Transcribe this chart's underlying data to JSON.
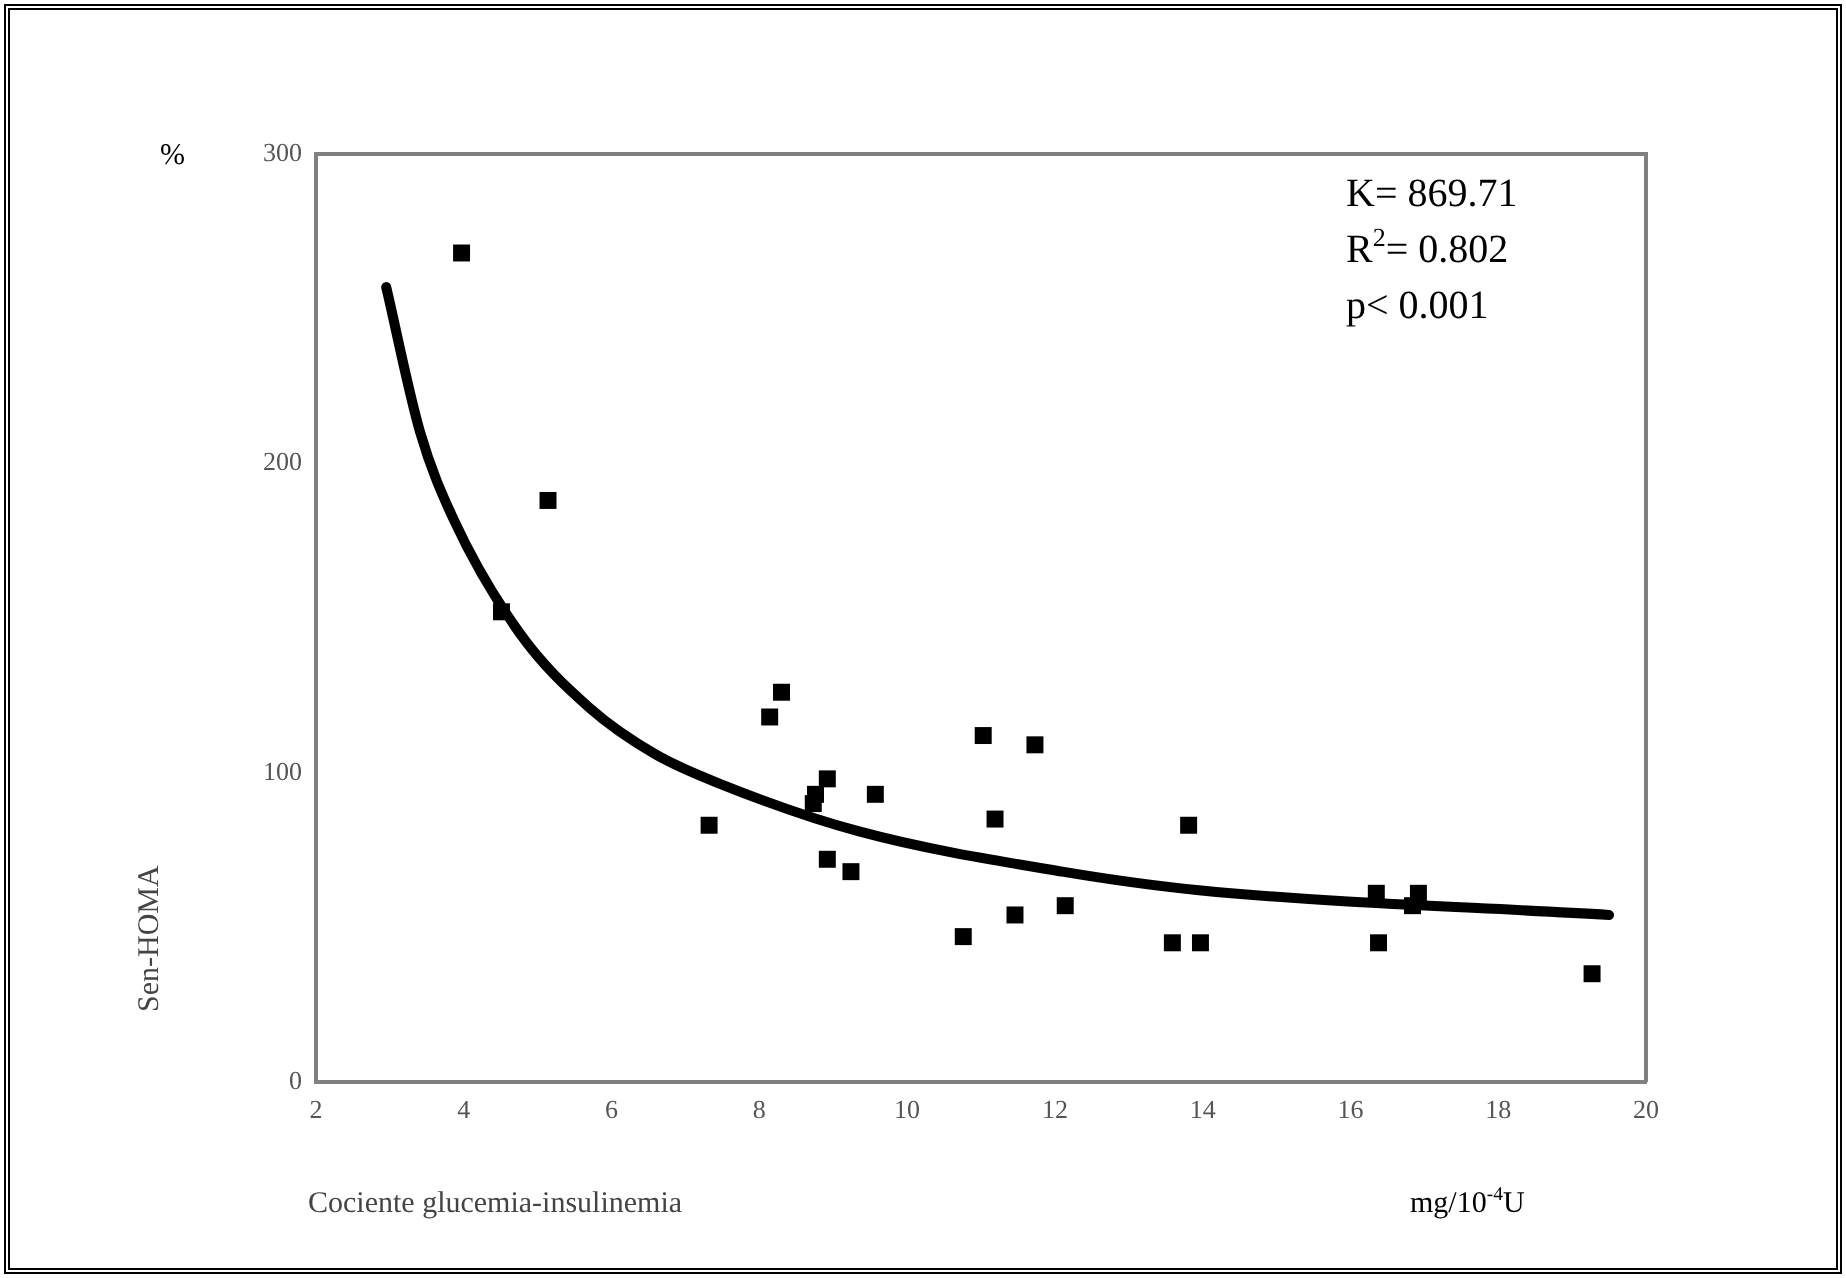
{
  "chart_data": {
    "type": "scatter",
    "xlabel": "Cociente glucemia-insulinemia",
    "ylabel": "Sen-HOMA",
    "annotations": [
      "K= 869.71",
      "R$^{2}$= 0.802",
      "p< 0.001",
      "%",
      "mg/10$^{-4}$U"
    ],
    "xlim": [
      2,
      20
    ],
    "xticks": [
      2,
      4,
      6,
      8,
      10,
      12,
      14,
      16,
      18,
      20
    ],
    "ylim": [
      0,
      300
    ],
    "yticks": [
      0,
      100,
      200,
      300
    ],
    "grid": false,
    "legend": false,
    "marker": "square",
    "series": [
      {
        "color": "#000000",
        "x": [
          3.97,
          5.14,
          4.51,
          8.14,
          8.3,
          7.32,
          8.92,
          8.76,
          8.73,
          9.57,
          8.92,
          9.24,
          11.03,
          11.73,
          11.19,
          10.76,
          11.46,
          12.14,
          16.35,
          16.92,
          16.84,
          16.38,
          13.59,
          13.97,
          19.27,
          13.81
        ],
        "values": [
          268,
          188,
          152,
          118,
          126,
          83,
          98,
          93,
          90,
          93,
          72,
          68,
          112,
          109,
          85,
          47,
          54,
          57,
          61,
          61,
          57,
          45,
          45,
          45,
          35,
          83
        ]
      },
      {
        "type": "line",
        "color": "#000000",
        "marker": "none",
        "x": [
          2.95,
          3.41,
          3.86,
          4.76,
          5.7,
          6.59,
          7.51,
          9.35,
          12.1,
          13.95,
          19.5
        ],
        "values": [
          257,
          210,
          182,
          145,
          121,
          106,
          96,
          81,
          68,
          62,
          54
        ]
      }
    ]
  }
}
